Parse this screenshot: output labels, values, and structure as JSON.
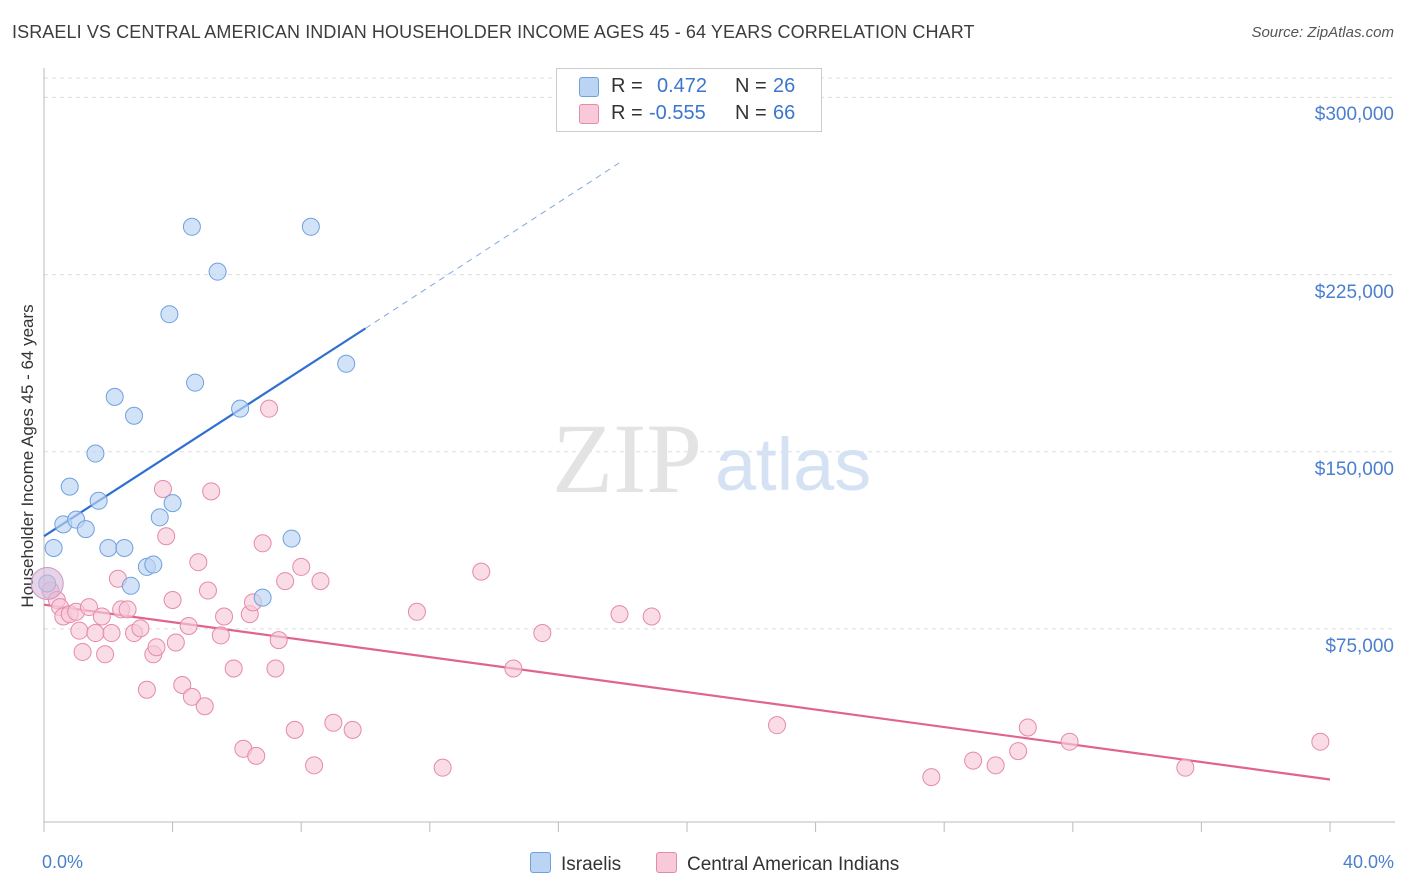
{
  "chart_data": {
    "type": "scatter",
    "title": "ISRAELI VS CENTRAL AMERICAN INDIAN HOUSEHOLDER INCOME AGES 45 - 64 YEARS CORRELATION CHART",
    "source": "Source: ZipAtlas.com",
    "ylabel": "Householder Income Ages 45 - 64 years",
    "xlabel": "",
    "xlim": [
      0,
      40
    ],
    "ylim": [
      0,
      315000
    ],
    "x_tick_labels": {
      "left": "0.0%",
      "right": "40.0%"
    },
    "y_ticks": [
      {
        "value": 300000,
        "label": "$300,000"
      },
      {
        "value": 225000,
        "label": "$225,000"
      },
      {
        "value": 150000,
        "label": "$150,000"
      },
      {
        "value": 75000,
        "label": "$75,000"
      }
    ],
    "watermark": {
      "zip": "ZIP",
      "atlas": "atlas"
    },
    "legend": {
      "r_label": "R =",
      "n_label": "N =",
      "israelis": {
        "r": "0.472",
        "n": "26"
      },
      "cai": {
        "r": "-0.555",
        "n": "66"
      }
    },
    "series": [
      {
        "name": "Israelis",
        "color": "#6fa0e0",
        "fill": "#bcd4f3",
        "line_color": "#2e6fcf",
        "trend": {
          "x0": 0.0,
          "y0": 121000,
          "x1": 10.0,
          "y1": 209000,
          "x_dash_end": 18.0,
          "y_dash_end": 280000
        },
        "points": [
          [
            0.3,
            116000
          ],
          [
            0.6,
            126000
          ],
          [
            0.8,
            142000
          ],
          [
            1.0,
            128000
          ],
          [
            1.3,
            124000
          ],
          [
            1.6,
            156000
          ],
          [
            1.7,
            136000
          ],
          [
            2.0,
            116000
          ],
          [
            2.2,
            180000
          ],
          [
            2.5,
            116000
          ],
          [
            2.7,
            100000
          ],
          [
            2.8,
            172000
          ],
          [
            3.2,
            108000
          ],
          [
            3.4,
            109000
          ],
          [
            3.6,
            129000
          ],
          [
            3.9,
            215000
          ],
          [
            4.0,
            135000
          ],
          [
            4.6,
            252000
          ],
          [
            4.7,
            186000
          ],
          [
            5.4,
            233000
          ],
          [
            6.1,
            175000
          ],
          [
            6.8,
            95000
          ],
          [
            7.7,
            120000
          ],
          [
            8.3,
            252000
          ],
          [
            9.4,
            194000
          ],
          [
            0.1,
            101000
          ]
        ]
      },
      {
        "name": "Central American Indians",
        "color": "#e58aa8",
        "fill": "#f8cad9",
        "line_color": "#e0648f",
        "trend": {
          "x0": 0.0,
          "y0": 92000,
          "x1": 40.0,
          "y1": 18000
        },
        "points": [
          [
            0.2,
            98000
          ],
          [
            0.4,
            94000
          ],
          [
            0.5,
            91000
          ],
          [
            0.6,
            87000
          ],
          [
            0.8,
            88000
          ],
          [
            1.0,
            89000
          ],
          [
            1.1,
            81000
          ],
          [
            1.2,
            72000
          ],
          [
            1.4,
            91000
          ],
          [
            1.6,
            80000
          ],
          [
            1.8,
            87000
          ],
          [
            1.9,
            71000
          ],
          [
            2.1,
            80000
          ],
          [
            2.3,
            103000
          ],
          [
            2.4,
            90000
          ],
          [
            2.6,
            90000
          ],
          [
            2.8,
            80000
          ],
          [
            3.0,
            82000
          ],
          [
            3.2,
            56000
          ],
          [
            3.4,
            71000
          ],
          [
            3.5,
            74000
          ],
          [
            3.7,
            141000
          ],
          [
            3.8,
            121000
          ],
          [
            4.0,
            94000
          ],
          [
            4.1,
            76000
          ],
          [
            4.3,
            58000
          ],
          [
            4.5,
            83000
          ],
          [
            4.6,
            53000
          ],
          [
            4.8,
            110000
          ],
          [
            5.0,
            49000
          ],
          [
            5.1,
            98000
          ],
          [
            5.2,
            140000
          ],
          [
            5.5,
            79000
          ],
          [
            5.6,
            87000
          ],
          [
            5.9,
            65000
          ],
          [
            6.2,
            31000
          ],
          [
            6.4,
            88000
          ],
          [
            6.5,
            93000
          ],
          [
            6.6,
            28000
          ],
          [
            6.8,
            118000
          ],
          [
            7.0,
            175000
          ],
          [
            7.2,
            65000
          ],
          [
            7.3,
            77000
          ],
          [
            7.5,
            102000
          ],
          [
            7.8,
            39000
          ],
          [
            8.0,
            108000
          ],
          [
            8.4,
            24000
          ],
          [
            8.6,
            102000
          ],
          [
            9.0,
            42000
          ],
          [
            9.6,
            39000
          ],
          [
            11.6,
            89000
          ],
          [
            12.4,
            23000
          ],
          [
            13.6,
            106000
          ],
          [
            14.6,
            65000
          ],
          [
            15.5,
            80000
          ],
          [
            17.9,
            88000
          ],
          [
            18.9,
            87000
          ],
          [
            22.8,
            41000
          ],
          [
            27.6,
            19000
          ],
          [
            28.9,
            26000
          ],
          [
            29.6,
            24000
          ],
          [
            30.3,
            30000
          ],
          [
            30.6,
            40000
          ],
          [
            31.9,
            34000
          ],
          [
            35.5,
            23000
          ],
          [
            39.7,
            34000
          ]
        ]
      }
    ]
  }
}
